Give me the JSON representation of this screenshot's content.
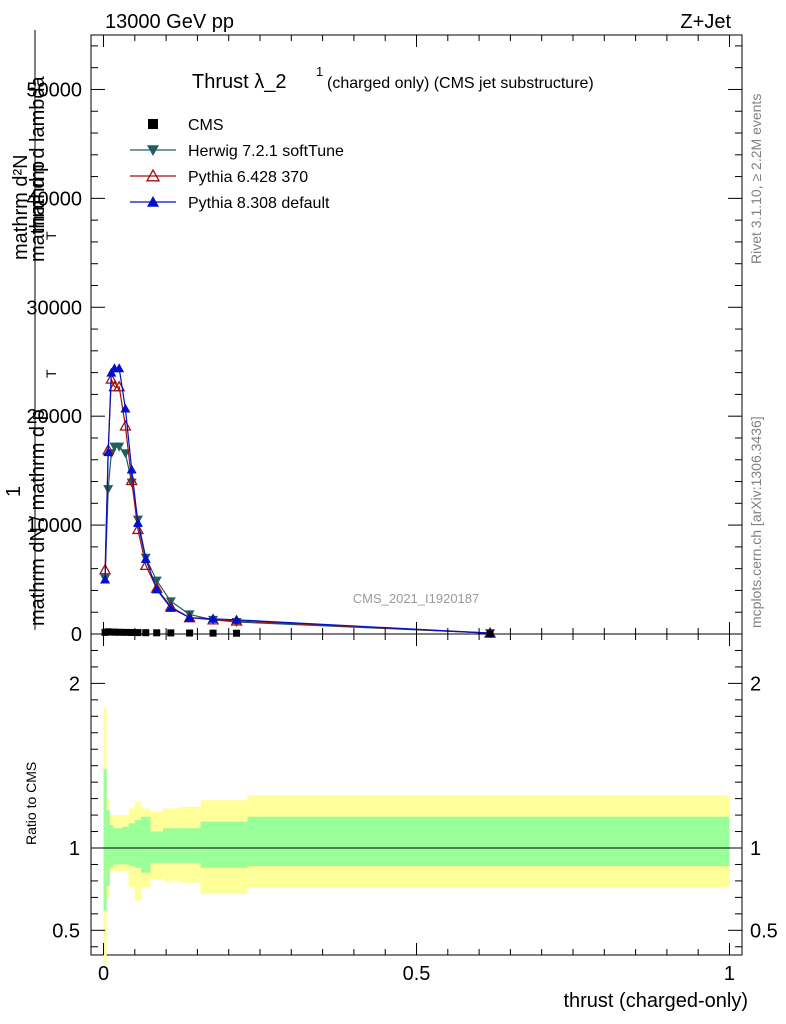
{
  "header": {
    "left": "13000 GeV pp",
    "right": "Z+Jet"
  },
  "side_labels": {
    "rivet": "Rivet 3.1.10, ≥ 2.2M events",
    "mcplots": "mcplots.cern.ch [arXiv:1306.3436]"
  },
  "chart_data": {
    "type": "line",
    "title": {
      "main": "Thrust λ_2",
      "superscript": "1",
      "suffix": "(charged only) (CMS jet substructure)"
    },
    "watermark": "CMS_2021_I1920187",
    "xlabel": "thrust (charged-only)",
    "ylabel_main": {
      "numerator_top": "mathrm d²N",
      "numerator_mid": "mathrm d p",
      "numerator_sub": "T",
      "numerator_end": "mathrm d lambda",
      "fraction_top": "1",
      "denominator": "mathrm dN / mathrm d p",
      "denominator_sub": "T"
    },
    "ylabel_ratio": "Ratio to CMS",
    "xlim": [
      -0.02,
      1.02
    ],
    "ylim": [
      0,
      55000
    ],
    "ratio_ylim": [
      0.35,
      2.3
    ],
    "x_ticks": [
      0,
      0.5,
      1
    ],
    "x_tick_labels": [
      "0",
      "0.5",
      "1"
    ],
    "y_ticks": [
      0,
      10000,
      20000,
      30000,
      40000,
      50000
    ],
    "y_tick_labels": [
      "0",
      "10000",
      "20000",
      "30000",
      "40000",
      "50000"
    ],
    "ratio_ticks": [
      0.5,
      1,
      2
    ],
    "ratio_tick_labels": [
      "0.5",
      "1",
      "2"
    ],
    "legend_position": "top-left",
    "series": [
      {
        "name": "CMS",
        "marker": "square",
        "color": "#000000",
        "x": [
          0.0025,
          0.0075,
          0.0125,
          0.0175,
          0.025,
          0.035,
          0.045,
          0.055,
          0.0675,
          0.085,
          0.1075,
          0.1375,
          0.175,
          0.2125,
          0.6175
        ],
        "y": [
          150,
          200,
          180,
          170,
          160,
          150,
          140,
          130,
          120,
          110,
          100,
          90,
          80,
          70,
          10
        ]
      },
      {
        "name": "Herwig 7.2.1 softTune",
        "marker": "triangle-down",
        "color": "#1f5f5f",
        "x": [
          0.0025,
          0.0075,
          0.0125,
          0.0175,
          0.025,
          0.035,
          0.045,
          0.055,
          0.0675,
          0.085,
          0.1075,
          0.1375,
          0.175,
          0.2125,
          0.6175
        ],
        "y": [
          5100,
          13300,
          16600,
          17200,
          17200,
          16600,
          13900,
          10500,
          7000,
          4900,
          3000,
          1800,
          1300,
          1100,
          80
        ]
      },
      {
        "name": "Pythia 6.428 370",
        "marker": "triangle-open",
        "color": "#a01010",
        "x": [
          0.0025,
          0.0075,
          0.0125,
          0.0175,
          0.025,
          0.035,
          0.045,
          0.055,
          0.0675,
          0.085,
          0.1075,
          0.1375,
          0.175,
          0.2125,
          0.6175
        ],
        "y": [
          5900,
          16900,
          23400,
          22700,
          22700,
          19100,
          14100,
          9600,
          6300,
          4200,
          2500,
          1500,
          1300,
          1200,
          80
        ]
      },
      {
        "name": "Pythia 8.308 default",
        "marker": "triangle-up",
        "color": "#0010cc",
        "x": [
          0.0025,
          0.0075,
          0.0125,
          0.0175,
          0.025,
          0.035,
          0.045,
          0.055,
          0.0675,
          0.085,
          0.1075,
          0.1375,
          0.175,
          0.2125,
          0.6175
        ],
        "y": [
          5000,
          16700,
          24000,
          24400,
          24400,
          20700,
          15100,
          10200,
          6900,
          4100,
          2400,
          1500,
          1400,
          1300,
          80
        ]
      }
    ],
    "ratio_bands": {
      "edges": [
        0,
        0.005,
        0.01,
        0.015,
        0.02,
        0.03,
        0.04,
        0.05,
        0.06,
        0.075,
        0.095,
        0.12,
        0.155,
        0.195,
        0.23,
        1.0
      ],
      "stat_low": [
        0.62,
        0.77,
        0.88,
        0.9,
        0.9,
        0.9,
        0.89,
        0.88,
        0.85,
        0.91,
        0.91,
        0.91,
        0.88,
        0.88,
        0.89
      ],
      "stat_high": [
        1.48,
        1.23,
        1.14,
        1.12,
        1.12,
        1.13,
        1.15,
        1.17,
        1.19,
        1.1,
        1.12,
        1.12,
        1.16,
        1.16,
        1.19
      ],
      "total_low": [
        0.3,
        0.7,
        0.86,
        0.86,
        0.86,
        0.86,
        0.76,
        0.68,
        0.76,
        0.81,
        0.8,
        0.79,
        0.72,
        0.72,
        0.76
      ],
      "total_high": [
        1.85,
        1.3,
        1.2,
        1.2,
        1.2,
        1.2,
        1.24,
        1.28,
        1.24,
        1.22,
        1.24,
        1.25,
        1.29,
        1.29,
        1.32
      ],
      "stat_color": "#99ff99",
      "total_color": "#ffff99"
    }
  }
}
